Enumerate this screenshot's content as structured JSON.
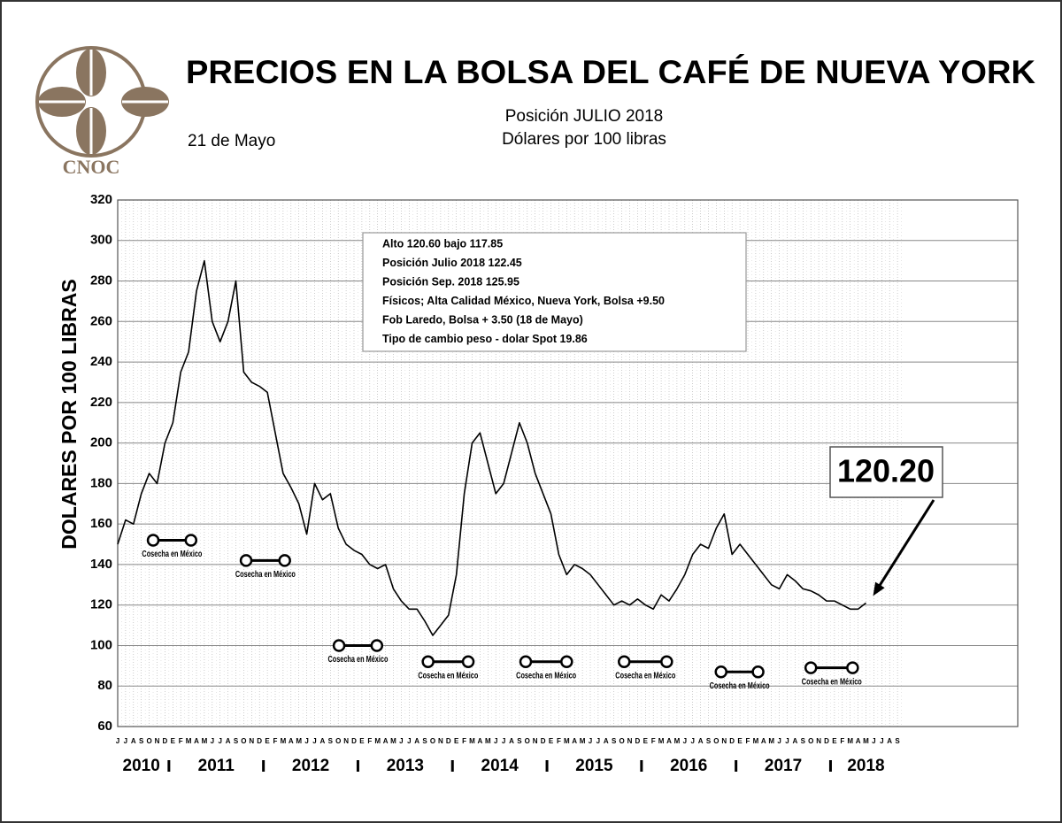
{
  "chart_data": {
    "type": "line",
    "title": "PRECIOS EN LA BOLSA DEL CAFÉ DE NUEVA YORK",
    "subtitle": [
      "Posición JULIO 2018",
      "Dólares por 100 libras"
    ],
    "date": "21 de Mayo",
    "logo_text": "CNOC",
    "ylabel": "DOLARES POR 100 LIBRAS",
    "categories": [
      "J",
      "J",
      "A",
      "S",
      "O",
      "N",
      "D",
      "E",
      "F",
      "M",
      "A",
      "M",
      "J",
      "J",
      "A",
      "S",
      "O",
      "N",
      "D",
      "E",
      "F",
      "M",
      "A",
      "M",
      "J",
      "J",
      "A",
      "S",
      "O",
      "N",
      "D",
      "E",
      "F",
      "M",
      "A",
      "M",
      "J",
      "J",
      "A",
      "S",
      "O",
      "N",
      "D",
      "E",
      "F",
      "M",
      "A",
      "M",
      "J",
      "J",
      "A",
      "S",
      "O",
      "N",
      "D",
      "E",
      "F",
      "M",
      "A",
      "M",
      "J",
      "J",
      "A",
      "S",
      "O",
      "N",
      "D",
      "E",
      "F",
      "M",
      "A",
      "M",
      "J",
      "J",
      "A",
      "S",
      "O",
      "N",
      "D",
      "E",
      "F",
      "M",
      "A",
      "M",
      "J",
      "J",
      "A",
      "S",
      "O",
      "N",
      "D",
      "E",
      "F",
      "M",
      "A",
      "M",
      "J",
      "J",
      "A",
      "S"
    ],
    "values": [
      150,
      162,
      160,
      175,
      185,
      180,
      200,
      210,
      235,
      245,
      275,
      290,
      260,
      250,
      260,
      280,
      235,
      230,
      228,
      225,
      205,
      185,
      178,
      170,
      155,
      180,
      172,
      175,
      158,
      150,
      147,
      145,
      140,
      138,
      140,
      128,
      122,
      118,
      118,
      112,
      105,
      110,
      115,
      135,
      175,
      200,
      205,
      190,
      175,
      180,
      195,
      210,
      200,
      185,
      175,
      165,
      145,
      135,
      140,
      138,
      135,
      130,
      125,
      120,
      122,
      120,
      123,
      120,
      118,
      125,
      122,
      128,
      135,
      145,
      150,
      148,
      158,
      165,
      145,
      150,
      145,
      140,
      135,
      130,
      128,
      135,
      132,
      128,
      127,
      125,
      122,
      122,
      120,
      118,
      118,
      121,
      null,
      null,
      null,
      null
    ],
    "color": "#000000",
    "years": [
      "2010",
      "2011",
      "2012",
      "2013",
      "2014",
      "2015",
      "2016",
      "2017",
      "2018"
    ],
    "ylim": [
      60,
      320
    ],
    "yticks": [
      60,
      80,
      100,
      120,
      140,
      160,
      180,
      200,
      220,
      240,
      260,
      280,
      300,
      320
    ],
    "grid": true,
    "info_box": [
      "Alto 120.60 bajo 117.85",
      "Posición Julio 2018 122.45",
      "Posición Sep. 2018 125.95",
      "Físicos; Alta Calidad México, Nueva York, Bolsa +9.50",
      "Fob Laredo, Bolsa + 3.50 (18 de Mayo)",
      "Tipo de cambio peso - dolar Spot 19.86"
    ],
    "last_price_label": "120.20",
    "harvest": [
      {
        "label": "Cosecha en México",
        "y": 152,
        "start": 4.5,
        "end": 9.3
      },
      {
        "label": "Cosecha en México",
        "y": 142,
        "start": 16.3,
        "end": 21.2
      },
      {
        "label": "Cosecha en México",
        "y": 100,
        "start": 28.1,
        "end": 32.9
      },
      {
        "label": "Cosecha en México",
        "y": 92,
        "start": 39.4,
        "end": 44.5
      },
      {
        "label": "Cosecha en México",
        "y": 92,
        "start": 51.8,
        "end": 57
      },
      {
        "label": "Cosecha en México",
        "y": 92,
        "start": 64.3,
        "end": 69.7
      },
      {
        "label": "Cosecha en México",
        "y": 87,
        "start": 76.6,
        "end": 81.3
      },
      {
        "label": "Cosecha en México",
        "y": 89,
        "start": 88,
        "end": 93.3
      }
    ]
  }
}
